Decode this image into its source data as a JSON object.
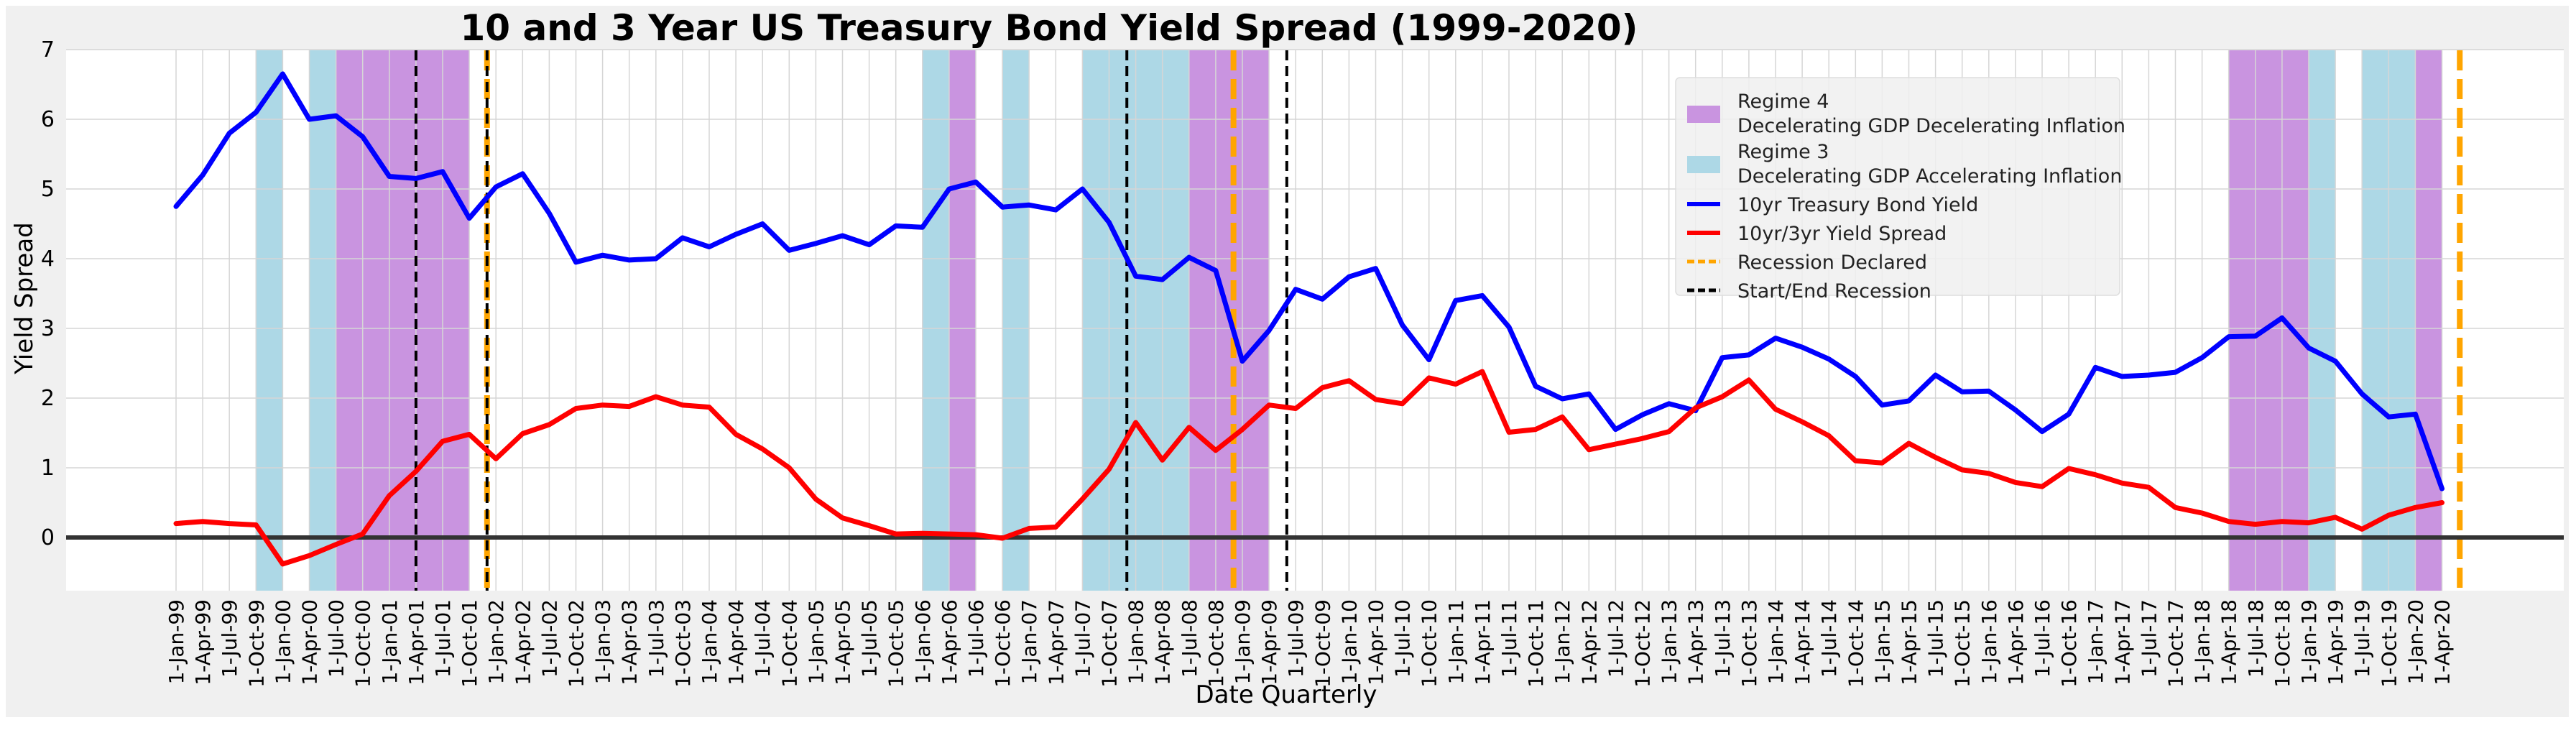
{
  "chart_data": {
    "type": "line",
    "title": "10 and 3 Year US Treasury Bond Yield Spread (1999-2020)",
    "xlabel": "Date Quarterly",
    "ylabel": "Yield Spread",
    "ylim": [
      -0.75,
      7
    ],
    "yticks": [
      "7",
      "6",
      "5",
      "4",
      "3",
      "2",
      "1",
      "0"
    ],
    "grid": true,
    "legend_position": "top-right",
    "x": [
      "1-Jan-99",
      "1-Apr-99",
      "1-Jul-99",
      "1-Oct-99",
      "1-Jan-00",
      "1-Apr-00",
      "1-Jul-00",
      "1-Oct-00",
      "1-Jan-01",
      "1-Apr-01",
      "1-Jul-01",
      "1-Oct-01",
      "1-Jan-02",
      "1-Apr-02",
      "1-Jul-02",
      "1-Oct-02",
      "1-Jan-03",
      "1-Apr-03",
      "1-Jul-03",
      "1-Oct-03",
      "1-Jan-04",
      "1-Apr-04",
      "1-Jul-04",
      "1-Oct-04",
      "1-Jan-05",
      "1-Apr-05",
      "1-Jul-05",
      "1-Oct-05",
      "1-Jan-06",
      "1-Apr-06",
      "1-Jul-06",
      "1-Oct-06",
      "1-Jan-07",
      "1-Apr-07",
      "1-Jul-07",
      "1-Oct-07",
      "1-Jan-08",
      "1-Apr-08",
      "1-Jul-08",
      "1-Oct-08",
      "1-Jan-09",
      "1-Apr-09",
      "1-Jul-09",
      "1-Oct-09",
      "1-Jan-10",
      "1-Apr-10",
      "1-Jul-10",
      "1-Oct-10",
      "1-Jan-11",
      "1-Apr-11",
      "1-Jul-11",
      "1-Oct-11",
      "1-Jan-12",
      "1-Apr-12",
      "1-Jul-12",
      "1-Oct-12",
      "1-Jan-13",
      "1-Apr-13",
      "1-Jul-13",
      "1-Oct-13",
      "1-Jan-14",
      "1-Apr-14",
      "1-Jul-14",
      "1-Oct-14",
      "1-Jan-15",
      "1-Apr-15",
      "1-Jul-15",
      "1-Oct-15",
      "1-Jan-16",
      "1-Apr-16",
      "1-Jul-16",
      "1-Oct-16",
      "1-Jan-17",
      "1-Apr-17",
      "1-Jul-17",
      "1-Oct-17",
      "1-Jan-18",
      "1-Apr-18",
      "1-Jul-18",
      "1-Oct-18",
      "1-Jan-19",
      "1-Apr-19",
      "1-Jul-19",
      "1-Oct-19",
      "1-Jan-20",
      "1-Apr-20"
    ],
    "series": [
      {
        "name": "10yr Treasury Bond Yield",
        "color": "#0000ff",
        "values": [
          4.75,
          5.2,
          5.8,
          6.1,
          6.65,
          6.0,
          6.05,
          5.75,
          5.18,
          5.15,
          5.25,
          4.58,
          5.03,
          5.22,
          4.65,
          3.95,
          4.05,
          3.98,
          4.0,
          4.3,
          4.17,
          4.35,
          4.5,
          4.12,
          4.22,
          4.33,
          4.2,
          4.47,
          4.45,
          5.0,
          5.1,
          4.74,
          4.77,
          4.7,
          5.0,
          4.52,
          3.75,
          3.7,
          4.02,
          3.83,
          2.53,
          2.97,
          3.56,
          3.42,
          3.74,
          3.86,
          3.05,
          2.55,
          3.4,
          3.47,
          3.02,
          2.17,
          1.99,
          2.06,
          1.55,
          1.76,
          1.92,
          1.82,
          2.58,
          2.62,
          2.86,
          2.73,
          2.56,
          2.31,
          1.9,
          1.96,
          2.33,
          2.09,
          2.1,
          1.83,
          1.52,
          1.77,
          2.44,
          2.31,
          2.33,
          2.37,
          2.58,
          2.88,
          2.89,
          3.15,
          2.72,
          2.53,
          2.06,
          1.73,
          1.77,
          0.7
        ]
      },
      {
        "name": "10yr/3yr Yield Spread",
        "color": "#ff0000",
        "values": [
          0.2,
          0.23,
          0.2,
          0.18,
          -0.38,
          -0.26,
          -0.1,
          0.05,
          0.6,
          0.95,
          1.38,
          1.48,
          1.13,
          1.49,
          1.62,
          1.85,
          1.9,
          1.88,
          2.02,
          1.9,
          1.87,
          1.48,
          1.27,
          1.0,
          0.55,
          0.28,
          0.17,
          0.05,
          0.06,
          0.05,
          0.04,
          -0.01,
          0.13,
          0.15,
          0.55,
          0.98,
          1.65,
          1.11,
          1.58,
          1.25,
          1.55,
          1.9,
          1.85,
          2.15,
          2.25,
          1.98,
          1.92,
          2.29,
          2.2,
          2.38,
          1.51,
          1.55,
          1.73,
          1.26,
          1.34,
          1.42,
          1.52,
          1.86,
          2.02,
          2.26,
          1.84,
          1.66,
          1.46,
          1.1,
          1.07,
          1.35,
          1.15,
          0.97,
          0.92,
          0.79,
          0.73,
          0.99,
          0.9,
          0.78,
          0.72,
          0.43,
          0.35,
          0.23,
          0.19,
          0.23,
          0.21,
          0.29,
          0.12,
          0.32,
          0.43,
          0.5
        ]
      }
    ],
    "regimes": [
      {
        "regime": "Regime 3",
        "from": "1-Oct-99",
        "to": "1-Jan-00",
        "color": "#add8e6"
      },
      {
        "regime": "Regime 3",
        "from": "1-Apr-00",
        "to": "1-Jul-00",
        "color": "#add8e6"
      },
      {
        "regime": "Regime 4",
        "from": "1-Jul-00",
        "to": "1-Oct-01",
        "color": "#c994e0"
      },
      {
        "regime": "Regime 3",
        "from": "1-Jan-06",
        "to": "1-Apr-06",
        "color": "#add8e6"
      },
      {
        "regime": "Regime 4",
        "from": "1-Apr-06",
        "to": "1-Jul-06",
        "color": "#c994e0"
      },
      {
        "regime": "Regime 3",
        "from": "1-Oct-06",
        "to": "1-Jan-07",
        "color": "#add8e6"
      },
      {
        "regime": "Regime 3",
        "from": "1-Jul-07",
        "to": "1-Jul-08",
        "color": "#add8e6"
      },
      {
        "regime": "Regime 4",
        "from": "1-Jul-08",
        "to": "1-Apr-09",
        "color": "#c994e0"
      },
      {
        "regime": "Regime 4",
        "from": "1-Apr-18",
        "to": "1-Jan-19",
        "color": "#c994e0"
      },
      {
        "regime": "Regime 3",
        "from": "1-Jan-19",
        "to": "1-Apr-19",
        "color": "#add8e6"
      },
      {
        "regime": "Regime 3",
        "from": "1-Jul-19",
        "to": "1-Jan-20",
        "color": "#add8e6"
      },
      {
        "regime": "Regime 4",
        "from": "1-Jan-20",
        "to": "1-Apr-20",
        "color": "#c994e0"
      }
    ],
    "recession_lines": [
      {
        "kind": "Start/End Recession",
        "date": "1-Apr-01",
        "color": "#000000"
      },
      {
        "kind": "Recession Declared",
        "date": "1-Dec-01",
        "color": "#ffa500"
      },
      {
        "kind": "Start/End Recession",
        "date": "1-Dec-01",
        "color": "#000000"
      },
      {
        "kind": "Start/End Recession",
        "date": "1-Dec-07",
        "color": "#000000"
      },
      {
        "kind": "Recession Declared",
        "date": "1-Dec-08",
        "color": "#ffa500"
      },
      {
        "kind": "Start/End Recession",
        "date": "1-Jun-09",
        "color": "#000000"
      },
      {
        "kind": "Recession Declared",
        "date": "1-Jun-20",
        "color": "#ffa500"
      }
    ],
    "baseline": {
      "y": 0,
      "color": "#333333"
    },
    "legend": [
      {
        "kind": "patch",
        "color": "#c994e0",
        "label_1": "Regime 4",
        "label_2": "Decelerating GDP Decelerating Inflation"
      },
      {
        "kind": "patch",
        "color": "#add8e6",
        "label_1": "Regime 3",
        "label_2": "Decelerating GDP Accelerating Inflation"
      },
      {
        "kind": "line",
        "color": "#0000ff",
        "label_1": "10yr Treasury Bond Yield"
      },
      {
        "kind": "line",
        "color": "#ff0000",
        "label_1": "10yr/3yr Yield Spread"
      },
      {
        "kind": "dash",
        "color": "#ffa500",
        "label_1": "Recession Declared"
      },
      {
        "kind": "dash",
        "color": "#000000",
        "label_1": "Start/End Recession"
      }
    ]
  }
}
